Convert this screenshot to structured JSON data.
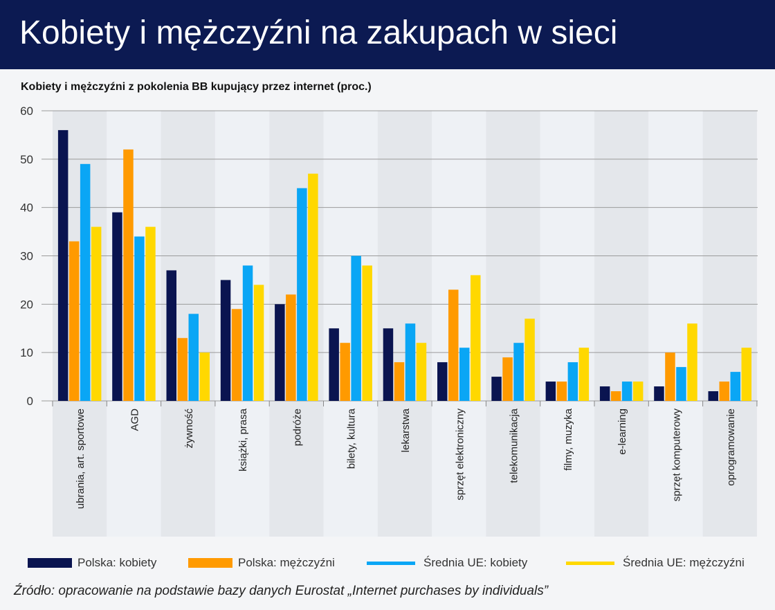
{
  "header": {
    "title": "Kobiety i mężczyźni na zakupach w sieci"
  },
  "chart_data": {
    "type": "bar",
    "title": "Kobiety i mężczyźni z pokolenia BB kupujący przez internet (proc.)",
    "categories": [
      "ubrania, art. sportowe",
      "AGD",
      "żywność",
      "książki, prasa",
      "podróże",
      "bilety, kultura",
      "lekarstwa",
      "sprzęt elektroniczny",
      "telekomunikacja",
      "filmy, muzyka",
      "e-learning",
      "sprzęt komputerowy",
      "oprogramowanie"
    ],
    "series": [
      {
        "name": "Polska: kobiety",
        "color": "#0a1450",
        "values": [
          56,
          39,
          27,
          25,
          20,
          15,
          15,
          8,
          5,
          4,
          3,
          3,
          2
        ]
      },
      {
        "name": "Polska: mężczyźni",
        "color": "#ff9a00",
        "values": [
          33,
          52,
          13,
          19,
          22,
          12,
          8,
          23,
          9,
          4,
          2,
          10,
          4
        ]
      },
      {
        "name": "Średnia UE: kobiety",
        "color": "#0aa6f5",
        "values": [
          49,
          34,
          18,
          28,
          44,
          30,
          16,
          11,
          12,
          8,
          4,
          7,
          6
        ]
      },
      {
        "name": "Średnia UE: mężczyźni",
        "color": "#ffd800",
        "values": [
          36,
          36,
          10,
          24,
          47,
          28,
          12,
          26,
          17,
          11,
          4,
          16,
          11
        ]
      }
    ],
    "yticks": [
      0,
      10,
      20,
      30,
      40,
      50,
      60
    ],
    "ylim": [
      0,
      60
    ],
    "grid": true,
    "legend": "bottom"
  },
  "source": "Źródło: opracowanie na podstawie bazy danych Eurostat „Internet purchases by individuals”"
}
